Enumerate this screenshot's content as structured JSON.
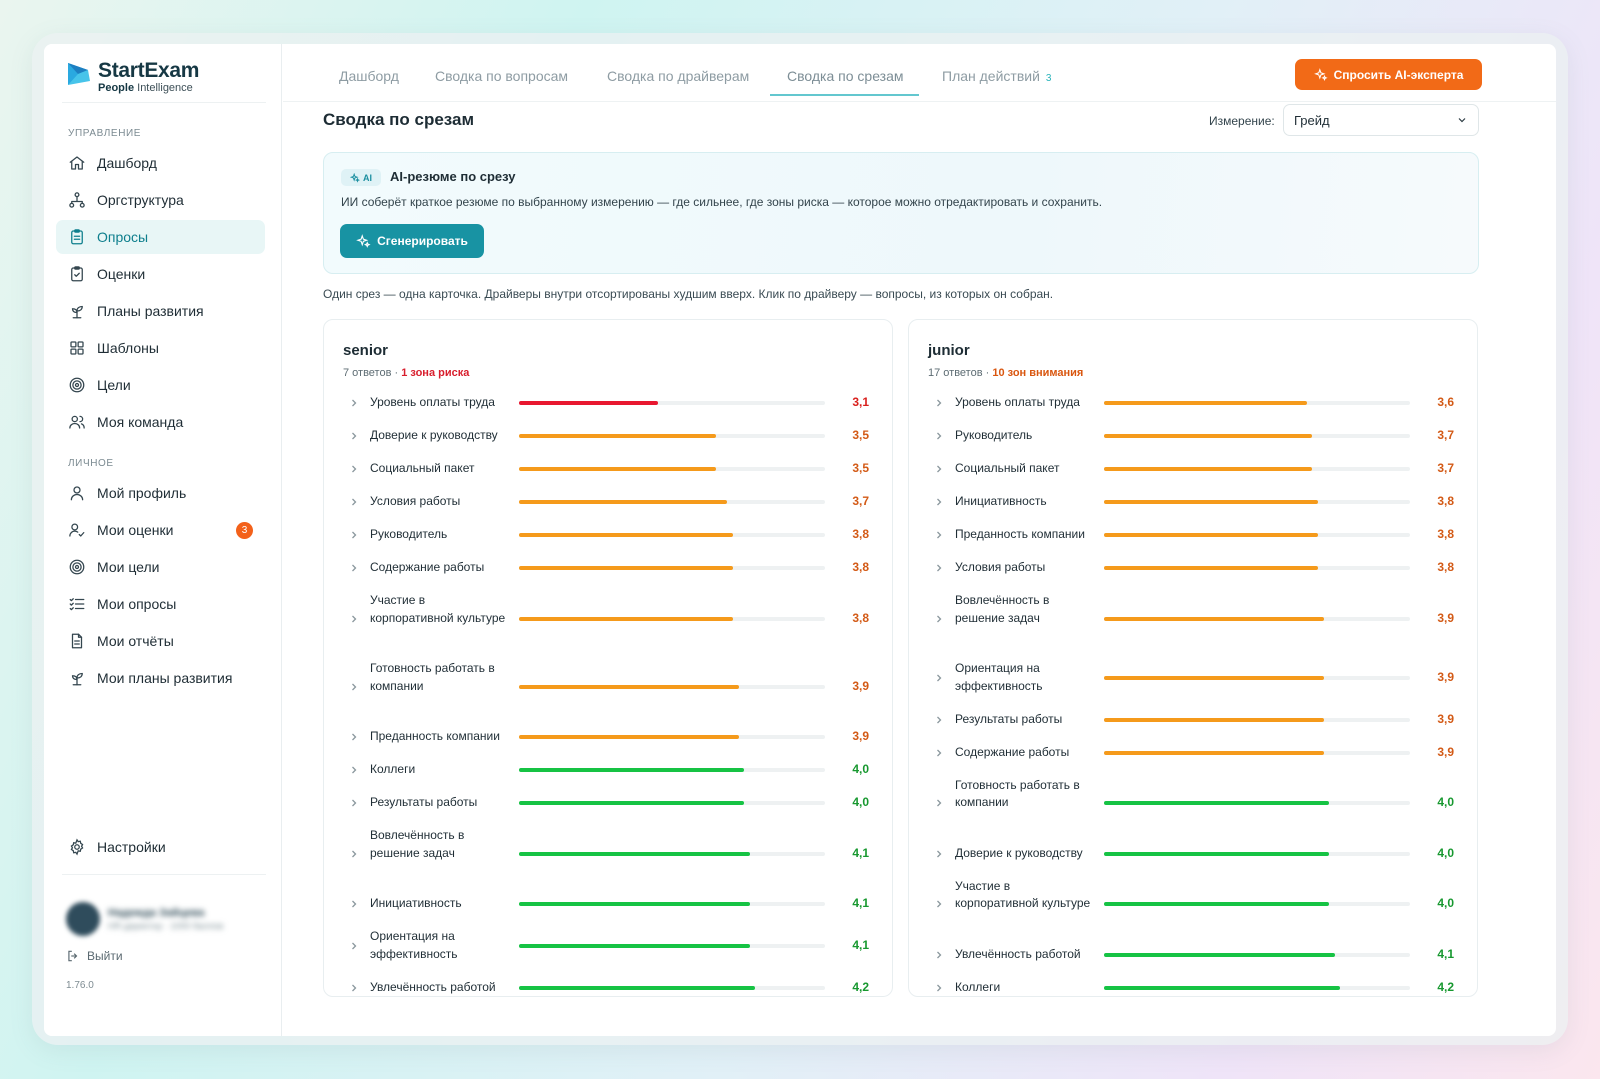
{
  "logo": {
    "title": "StartExam",
    "sub_bold": "People",
    "sub_rest": " Intelligence"
  },
  "sidebar": {
    "section_manage": "УПРАВЛЕНИЕ",
    "manage_items": [
      {
        "label": "Дашборд",
        "icon": "home-icon"
      },
      {
        "label": "Оргструктура",
        "icon": "org-structure-icon"
      },
      {
        "label": "Опросы",
        "icon": "clipboard-icon",
        "active": true
      },
      {
        "label": "Оценки",
        "icon": "clipboard-check-icon"
      },
      {
        "label": "Планы развития",
        "icon": "sprout-icon"
      },
      {
        "label": "Шаблоны",
        "icon": "grid-icon"
      },
      {
        "label": "Цели",
        "icon": "target-icon"
      },
      {
        "label": "Моя команда",
        "icon": "users-icon"
      }
    ],
    "section_personal": "ЛИЧНОЕ",
    "personal_items": [
      {
        "label": "Мой профиль",
        "icon": "user-icon"
      },
      {
        "label": "Мои оценки",
        "icon": "user-check-icon",
        "badge": "3"
      },
      {
        "label": "Мои цели",
        "icon": "target-icon"
      },
      {
        "label": "Мои опросы",
        "icon": "list-check-icon"
      },
      {
        "label": "Мои отчёты",
        "icon": "file-text-icon"
      },
      {
        "label": "Мои планы развития",
        "icon": "sprout-icon"
      }
    ],
    "settings": "Настройки",
    "user_name": "Надежда Зайцева",
    "user_sub": "HR-директор · 1000 баллов",
    "logout": "Выйти",
    "version": "1.76.0"
  },
  "tabs": [
    {
      "label": "Дашборд"
    },
    {
      "label": "Сводка по вопросам"
    },
    {
      "label": "Сводка по драйверам"
    },
    {
      "label": "Сводка по срезам",
      "active": true
    },
    {
      "label": "План действий",
      "count": "3"
    }
  ],
  "ask_button": "Спросить AI-эксперта",
  "page_title": "Сводка по срезам",
  "dimension": {
    "label": "Измерение:",
    "value": "Грейд"
  },
  "ai_card": {
    "chip": "AI",
    "title": "AI-резюме по срезу",
    "description": "ИИ соберёт краткое резюме по выбранному измерению — где сильнее, где зоны риска — которое можно отредактировать и сохранить.",
    "button": "Сгенерировать"
  },
  "hint": "Один срез — одна карточка. Драйверы внутри отсортированы худшим вверх. Клик по драйверу — вопросы, из которых он собран.",
  "colors": {
    "red": "#e8172f",
    "orange": "#f59a1b",
    "green": "#16c344",
    "val_red": "#d9201d",
    "val_orange": "#d35a16",
    "val_green": "#17982f"
  },
  "scale_max": 5,
  "cards": [
    {
      "title": "senior",
      "responses": "7 ответов",
      "status": "1 зона риска",
      "status_color": "#d81e2d",
      "drivers": [
        {
          "label": "Уровень оплаты труда",
          "value": "3,1",
          "score": 3.1,
          "level": "red"
        },
        {
          "label": "Доверие к руководству",
          "value": "3,5",
          "score": 3.5,
          "level": "orange"
        },
        {
          "label": "Социальный пакет",
          "value": "3,5",
          "score": 3.5,
          "level": "orange"
        },
        {
          "label": "Условия работы",
          "value": "3,7",
          "score": 3.7,
          "level": "orange"
        },
        {
          "label": "Руководитель",
          "value": "3,8",
          "score": 3.8,
          "level": "orange"
        },
        {
          "label": "Содержание работы",
          "value": "3,8",
          "score": 3.8,
          "level": "orange"
        },
        {
          "label": "Участие в корпоративной культуре",
          "value": "3,8",
          "score": 3.8,
          "level": "orange"
        },
        {
          "label": "Готовность работать в компании",
          "value": "3,9",
          "score": 3.9,
          "level": "orange"
        },
        {
          "label": "Преданность компании",
          "value": "3,9",
          "score": 3.9,
          "level": "orange"
        },
        {
          "label": "Коллеги",
          "value": "4,0",
          "score": 4.0,
          "level": "green"
        },
        {
          "label": "Результаты работы",
          "value": "4,0",
          "score": 4.0,
          "level": "green"
        },
        {
          "label": "Вовлечённость в решение задач",
          "value": "4,1",
          "score": 4.1,
          "level": "green"
        },
        {
          "label": "Инициативность",
          "value": "4,1",
          "score": 4.1,
          "level": "green"
        },
        {
          "label": "Ориентация на эффективность",
          "value": "4,1",
          "score": 4.1,
          "level": "green"
        },
        {
          "label": "Увлечённость работой",
          "value": "4,2",
          "score": 4.2,
          "level": "green"
        }
      ]
    },
    {
      "title": "junior",
      "responses": "17 ответов",
      "status": "10 зон внимания",
      "status_color": "#d9560f",
      "drivers": [
        {
          "label": "Уровень оплаты труда",
          "value": "3,6",
          "score": 3.6,
          "level": "orange"
        },
        {
          "label": "Руководитель",
          "value": "3,7",
          "score": 3.7,
          "level": "orange"
        },
        {
          "label": "Социальный пакет",
          "value": "3,7",
          "score": 3.7,
          "level": "orange"
        },
        {
          "label": "Инициативность",
          "value": "3,8",
          "score": 3.8,
          "level": "orange"
        },
        {
          "label": "Преданность компании",
          "value": "3,8",
          "score": 3.8,
          "level": "orange"
        },
        {
          "label": "Условия работы",
          "value": "3,8",
          "score": 3.8,
          "level": "orange"
        },
        {
          "label": "Вовлечённость в решение задач",
          "value": "3,9",
          "score": 3.9,
          "level": "orange"
        },
        {
          "label": "Ориентация на эффективность",
          "value": "3,9",
          "score": 3.9,
          "level": "orange"
        },
        {
          "label": "Результаты работы",
          "value": "3,9",
          "score": 3.9,
          "level": "orange"
        },
        {
          "label": "Содержание работы",
          "value": "3,9",
          "score": 3.9,
          "level": "orange"
        },
        {
          "label": "Готовность работать в компании",
          "value": "4,0",
          "score": 4.0,
          "level": "green"
        },
        {
          "label": "Доверие к руководству",
          "value": "4,0",
          "score": 4.0,
          "level": "green"
        },
        {
          "label": "Участие в корпоративной культуре",
          "value": "4,0",
          "score": 4.0,
          "level": "green"
        },
        {
          "label": "Увлечённость работой",
          "value": "4,1",
          "score": 4.1,
          "level": "green"
        },
        {
          "label": "Коллеги",
          "value": "4,2",
          "score": 4.2,
          "level": "green"
        }
      ]
    }
  ]
}
